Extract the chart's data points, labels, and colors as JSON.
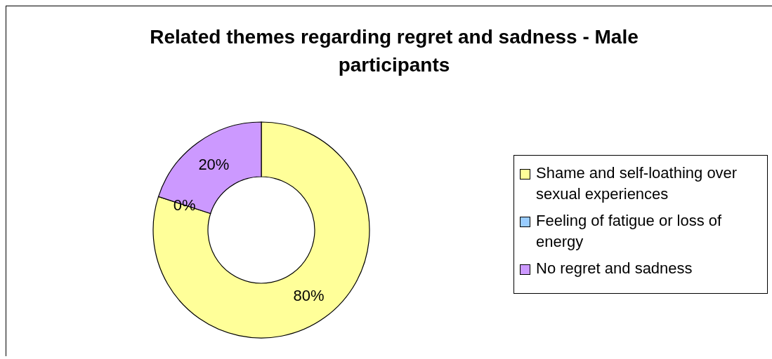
{
  "chart_data": {
    "type": "donut",
    "title": "Related themes regarding regret and sadness - Male participants",
    "categories": [
      "Shame and self-loathing over sexual experiences",
      "Feeling of fatigue or loss of energy",
      "No regret and sadness"
    ],
    "values": [
      80,
      0,
      20
    ],
    "value_labels": [
      "80%",
      "0%",
      "20%"
    ],
    "colors": [
      "#ffff99",
      "#99ccff",
      "#cc99ff"
    ],
    "legend": "right"
  }
}
